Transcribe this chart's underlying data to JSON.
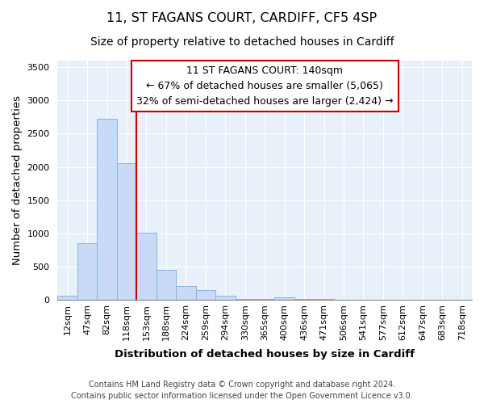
{
  "title": "11, ST FAGANS COURT, CARDIFF, CF5 4SP",
  "subtitle": "Size of property relative to detached houses in Cardiff",
  "xlabel": "Distribution of detached houses by size in Cardiff",
  "ylabel": "Number of detached properties",
  "bar_labels": [
    "12sqm",
    "47sqm",
    "82sqm",
    "118sqm",
    "153sqm",
    "188sqm",
    "224sqm",
    "259sqm",
    "294sqm",
    "330sqm",
    "365sqm",
    "400sqm",
    "436sqm",
    "471sqm",
    "506sqm",
    "541sqm",
    "577sqm",
    "612sqm",
    "647sqm",
    "683sqm",
    "718sqm"
  ],
  "bar_values": [
    55,
    850,
    2720,
    2060,
    1005,
    455,
    210,
    145,
    55,
    5,
    5,
    30,
    15,
    5,
    0,
    0,
    0,
    0,
    0,
    0,
    0
  ],
  "bar_color": "#c8daf5",
  "bar_edge_color": "#8ab4e0",
  "vline_color": "#cc0000",
  "plot_bg_color": "#e8f0fa",
  "ylim": [
    0,
    3600
  ],
  "yticks": [
    0,
    500,
    1000,
    1500,
    2000,
    2500,
    3000,
    3500
  ],
  "annotation_title": "11 ST FAGANS COURT: 140sqm",
  "annotation_line1": "← 67% of detached houses are smaller (5,065)",
  "annotation_line2": "32% of semi-detached houses are larger (2,424) →",
  "annotation_box_color": "#ffffff",
  "annotation_box_edge": "#cc0000",
  "footer1": "Contains HM Land Registry data © Crown copyright and database right 2024.",
  "footer2": "Contains public sector information licensed under the Open Government Licence v3.0.",
  "title_fontsize": 11.5,
  "subtitle_fontsize": 10,
  "axis_label_fontsize": 9.5,
  "tick_fontsize": 8,
  "annotation_fontsize": 9,
  "footer_fontsize": 7
}
